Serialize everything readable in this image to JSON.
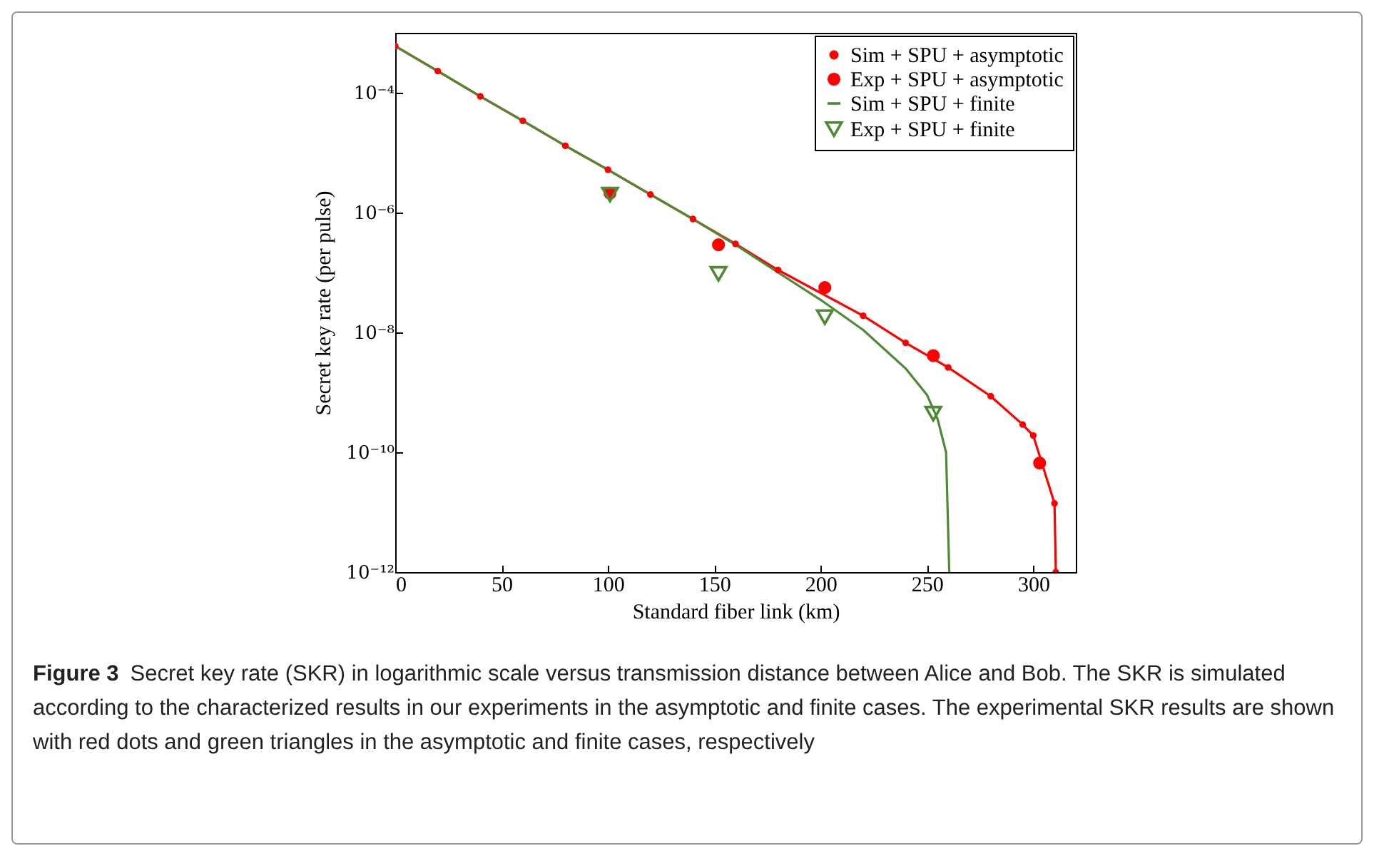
{
  "chart_data": {
    "type": "line",
    "xlabel": "Standard fiber link (km)",
    "ylabel": "Secret key rate (per pulse)",
    "annotations": [
      "Figure 3",
      "Secret key rate (SKR) in logarithmic scale versus transmission distance between Alice and Bob. The SKR is simulated according to the characterized results in our experiments in the asymptotic and finite cases. The experimental SKR results are shown with red dots and green triangles in the asymptotic and finite cases, respectively"
    ],
    "log": "y",
    "xlim": [
      0,
      320
    ],
    "xticks": [
      0,
      50,
      100,
      150,
      200,
      250,
      300
    ],
    "ylim": [
      1e-12,
      0.001
    ],
    "yticks": [
      {
        "value": 1e-12,
        "label": "10⁻¹²"
      },
      {
        "value": 1e-10,
        "label": "10⁻¹⁰"
      },
      {
        "value": 1e-08,
        "label": "10⁻⁸"
      },
      {
        "value": 1e-06,
        "label": "10⁻⁶"
      },
      {
        "value": 0.0001,
        "label": "10⁻⁴"
      }
    ],
    "grid": false,
    "legend": "top right",
    "series": [
      {
        "name": "Sim + SPU + asymptotic",
        "marker": "circle",
        "color": "#ff0000",
        "x": [
          0,
          20,
          40,
          60,
          80,
          100,
          120,
          140,
          160,
          180,
          220,
          240,
          260,
          280,
          295,
          300,
          310,
          310.6
        ],
        "values": [
          0.0006,
          0.00023,
          8.7e-05,
          3.4e-05,
          1.3e-05,
          5.2e-06,
          2e-06,
          7.8e-07,
          3e-07,
          1.1e-07,
          1.9e-08,
          6.7e-09,
          2.6e-09,
          8.6e-10,
          2.9e-10,
          1.9e-10,
          1.4e-11,
          1e-12
        ]
      },
      {
        "name": "Exp + SPU + asymptotic",
        "type": "scatter",
        "marker": "circle",
        "color": "#ff0000",
        "x": [
          101,
          152,
          202,
          253,
          303
        ],
        "values": [
          2.1e-06,
          2.9e-07,
          5.6e-08,
          4.1e-09,
          6.6e-11
        ]
      },
      {
        "name": "Sim + SPU + finite",
        "marker": "none",
        "color": "#4e8a35",
        "x": [
          0,
          20,
          40,
          60,
          80,
          100,
          120,
          140,
          160,
          180,
          200,
          220,
          240,
          250,
          255,
          259,
          260.5
        ],
        "values": [
          0.0006,
          0.00023,
          8.7e-05,
          3.4e-05,
          1.3e-05,
          5.2e-06,
          2e-06,
          7.8e-07,
          2.9e-07,
          1e-07,
          3.5e-08,
          1.1e-08,
          2.5e-09,
          9.1e-10,
          3.6e-10,
          1e-10,
          1e-12
        ]
      },
      {
        "name": "Exp + SPU + finite",
        "type": "scatter",
        "marker": "triangle",
        "color": "#4e8a35",
        "x": [
          101,
          152,
          202,
          253
        ],
        "values": [
          2e-06,
          9.5e-08,
          1.8e-08,
          4.4e-10
        ]
      }
    ]
  }
}
